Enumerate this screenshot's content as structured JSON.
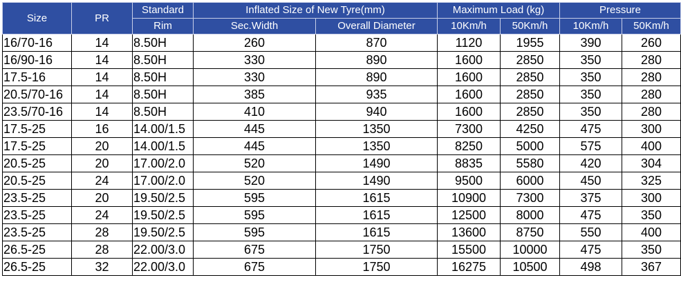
{
  "header": {
    "size": "Size",
    "pr": "PR",
    "rim_line1": "Standard",
    "rim_line2": "Rim",
    "inflated": "Inflated Size of New Tyre(mm)",
    "sec_width": "Sec.Width",
    "overall_diameter": "Overall Diameter",
    "max_load": "Maximum Load (kg)",
    "pressure": "Pressure",
    "load_10": "10Km/h",
    "load_50": "50Km/h",
    "press_10": "10Km/h",
    "press_50": "50Km/h"
  },
  "rows": [
    [
      "16/70-16",
      "14",
      "8.50H",
      "260",
      "870",
      "1120",
      "1955",
      "390",
      "260"
    ],
    [
      "16/90-16",
      "14",
      "8.50H",
      "330",
      "890",
      "1600",
      "2850",
      "350",
      "280"
    ],
    [
      "17.5-16",
      "14",
      "8.50H",
      "330",
      "890",
      "1600",
      "2850",
      "350",
      "280"
    ],
    [
      "20.5/70-16",
      "14",
      "8.50H",
      "385",
      "935",
      "1600",
      "2850",
      "350",
      "280"
    ],
    [
      "23.5/70-16",
      "14",
      "8.50H",
      "410",
      "940",
      "1600",
      "2850",
      "350",
      "280"
    ],
    [
      "17.5-25",
      "16",
      "14.00/1.5",
      "445",
      "1350",
      "7300",
      "4250",
      "475",
      "300"
    ],
    [
      "17.5-25",
      "20",
      "14.00/1.5",
      "445",
      "1350",
      "8250",
      "5000",
      "575",
      "400"
    ],
    [
      "20.5-25",
      "20",
      "17.00/2.0",
      "520",
      "1490",
      "8835",
      "5580",
      "420",
      "304"
    ],
    [
      "20.5-25",
      "24",
      "17.00/2.0",
      "520",
      "1490",
      "9500",
      "6000",
      "450",
      "325"
    ],
    [
      "23.5-25",
      "20",
      "19.50/2.5",
      "595",
      "1615",
      "10900",
      "7300",
      "375",
      "300"
    ],
    [
      "23.5-25",
      "24",
      "19.50/2.5",
      "595",
      "1615",
      "12500",
      "8000",
      "475",
      "350"
    ],
    [
      "23.5-25",
      "28",
      "19.50/2.5",
      "595",
      "1615",
      "13600",
      "8750",
      "550",
      "400"
    ],
    [
      "26.5-25",
      "28",
      "22.00/3.0",
      "675",
      "1750",
      "15500",
      "10000",
      "475",
      "350"
    ],
    [
      "26.5-25",
      "32",
      "22.00/3.0",
      "675",
      "1750",
      "16275",
      "10500",
      "498",
      "367"
    ]
  ]
}
